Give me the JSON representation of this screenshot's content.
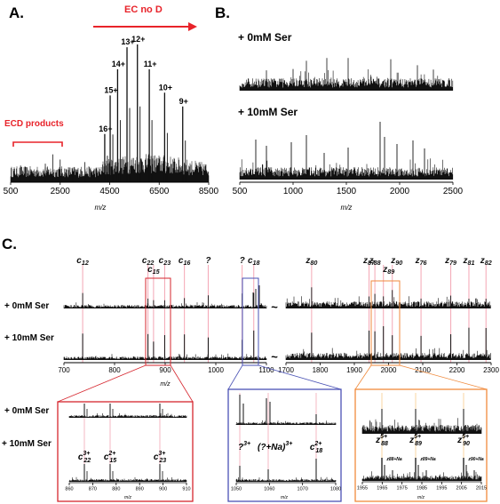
{
  "panel_a": {
    "letter": "A.",
    "arrow_label": "EC no D",
    "bracket_label": "ECD products",
    "xlabel": "m/z",
    "ticks": [
      "500",
      "2500",
      "4500",
      "6500",
      "8500"
    ],
    "charge_states": [
      "16+",
      "15+",
      "14+",
      "13+",
      "12+",
      "11+",
      "10+",
      "9+"
    ]
  },
  "panel_b": {
    "letter": "B.",
    "labels": [
      "+ 0mM Ser",
      "+ 10mM Ser"
    ],
    "xlabel": "m/z",
    "ticks": [
      "500",
      "1000",
      "1500",
      "2000",
      "2500"
    ]
  },
  "panel_c": {
    "letter": "C.",
    "row_labels": [
      "+ 0mM Ser",
      "+ 10mM Ser"
    ],
    "left_ions": [
      "c12",
      "c22",
      "c15",
      "c23",
      "c16",
      "?",
      "?",
      "c18"
    ],
    "right_ions": [
      "z80",
      "z87",
      "z88",
      "z89",
      "z90",
      "z76",
      "z79",
      "z81",
      "z82"
    ],
    "left_ticks": [
      "700",
      "800",
      "900",
      "1000",
      "1100"
    ],
    "right_ticks": [
      "1700",
      "1800",
      "1900",
      "2000",
      "2100",
      "2200",
      "2300"
    ],
    "xlabel": "m/z",
    "break_mark": "~",
    "zoom_red": {
      "labels": [
        "c22 3+",
        "c15 2+",
        "c23 3+"
      ],
      "ticks": [
        "860",
        "870",
        "880",
        "890",
        "900",
        "910"
      ],
      "xlabel": "m/z"
    },
    "zoom_blue": {
      "labels": [
        "? 3+",
        "(?+Na) 3+",
        "c18 2+"
      ],
      "ticks": [
        "1050",
        "1060",
        "1070",
        "1080"
      ],
      "xlabel": "m/z"
    },
    "zoom_orange": {
      "labels": [
        "z88 5+",
        "z89 5+",
        "z90 5+"
      ],
      "na_labels": [
        "z88+Na",
        "z89+Na",
        "z90+Na"
      ],
      "ticks": [
        "1955",
        "1965",
        "1975",
        "1985",
        "1995",
        "2005",
        "2015"
      ],
      "xlabel": "m/z"
    }
  },
  "colors": {
    "accent_red": "#e8232a",
    "zoom_red": "#d6262e",
    "zoom_blue": "#4a52b5",
    "zoom_orange": "#f08a3c",
    "marker_pink": "#f4a6b4",
    "trace": "#111111"
  },
  "chart_data": [
    {
      "type": "line",
      "panel": "A",
      "xlabel": "m/z",
      "xlim": [
        500,
        8500
      ],
      "peaks": [
        {
          "label": "16+",
          "x": 4300,
          "rel": 0.35
        },
        {
          "label": "15+",
          "x": 4520,
          "rel": 0.63
        },
        {
          "label": "14+",
          "x": 4820,
          "rel": 0.82
        },
        {
          "label": "13+",
          "x": 5200,
          "rel": 0.98
        },
        {
          "label": "12+",
          "x": 5620,
          "rel": 1.0
        },
        {
          "label": "11+",
          "x": 6100,
          "rel": 0.82
        },
        {
          "label": "10+",
          "x": 6720,
          "rel": 0.65
        },
        {
          "label": "9+",
          "x": 7450,
          "rel": 0.55
        }
      ]
    },
    {
      "type": "line",
      "panel": "B",
      "series": [
        {
          "name": "+ 0mM Ser"
        },
        {
          "name": "+ 10mM Ser"
        }
      ],
      "xlabel": "m/z",
      "xlim": [
        500,
        2500
      ]
    },
    {
      "type": "line",
      "panel": "C",
      "xlabel": "m/z",
      "xlim_left": [
        700,
        1100
      ],
      "xlim_right": [
        1700,
        2300
      ],
      "left_markers": [
        {
          "label": "c12",
          "x": 737
        },
        {
          "label": "c22",
          "x": 866
        },
        {
          "label": "c15",
          "x": 877
        },
        {
          "label": "c23",
          "x": 899
        },
        {
          "label": "c16",
          "x": 938
        },
        {
          "label": "?",
          "x": 985
        },
        {
          "label": "?",
          "x": 1052
        },
        {
          "label": "c18",
          "x": 1075
        }
      ],
      "right_markers": [
        {
          "label": "z80",
          "x": 1775
        },
        {
          "label": "z87",
          "x": 1943
        },
        {
          "label": "z88",
          "x": 1960
        },
        {
          "label": "z89",
          "x": 1985
        },
        {
          "label": "z90",
          "x": 2011
        },
        {
          "label": "z76",
          "x": 2095
        },
        {
          "label": "z79",
          "x": 2182
        },
        {
          "label": "z81",
          "x": 2235
        },
        {
          "label": "z82",
          "x": 2285
        }
      ]
    }
  ]
}
